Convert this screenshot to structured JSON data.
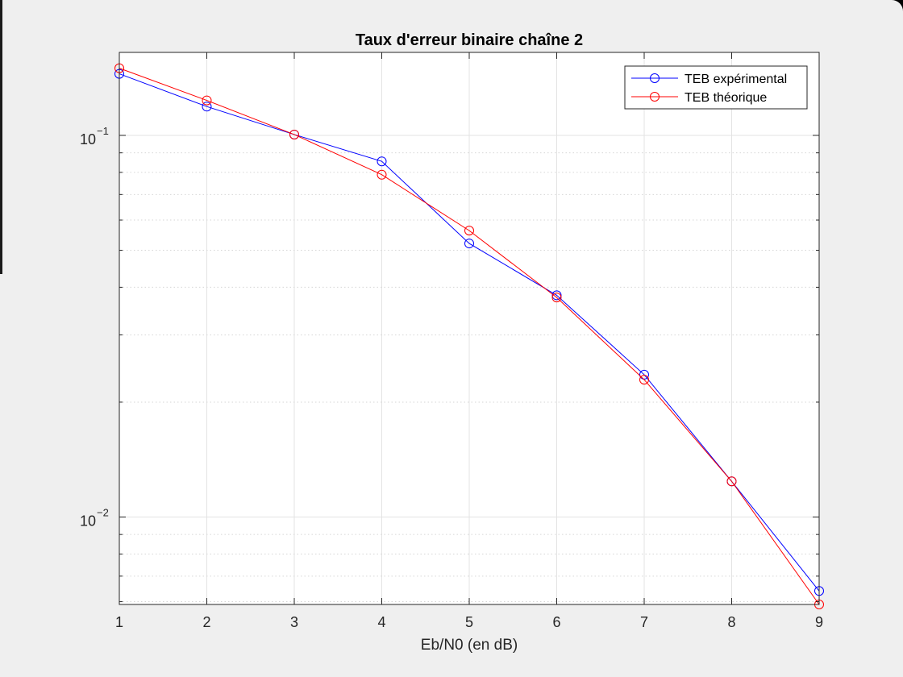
{
  "chart_data": {
    "type": "line",
    "title": "Taux d'erreur binaire chaîne 2",
    "xlabel": "Eb/N0 (en dB)",
    "ylabel": "",
    "x": [
      1,
      2,
      3,
      4,
      5,
      6,
      7,
      8,
      9
    ],
    "xlim": [
      1,
      9
    ],
    "ylim": [
      0.0059,
      0.165
    ],
    "yscale": "log",
    "grid": true,
    "legend_position": "top-right",
    "xticks": [
      "1",
      "2",
      "3",
      "4",
      "5",
      "6",
      "7",
      "8",
      "9"
    ],
    "yticks": [
      {
        "value": 0.1,
        "base": "10",
        "exponent": "−1"
      },
      {
        "value": 0.01,
        "base": "10",
        "exponent": "−2"
      }
    ],
    "series": [
      {
        "name": "TEB expérimental",
        "color": "#0000ff",
        "marker": "circle",
        "values": [
          0.145,
          0.119,
          0.1005,
          0.0855,
          0.0521,
          0.0381,
          0.0236,
          0.0124,
          0.0064
        ]
      },
      {
        "name": "TEB théorique",
        "color": "#ff0000",
        "marker": "circle",
        "values": [
          0.15,
          0.1235,
          0.1005,
          0.0789,
          0.0563,
          0.0376,
          0.0229,
          0.0124,
          0.0059
        ]
      }
    ]
  }
}
